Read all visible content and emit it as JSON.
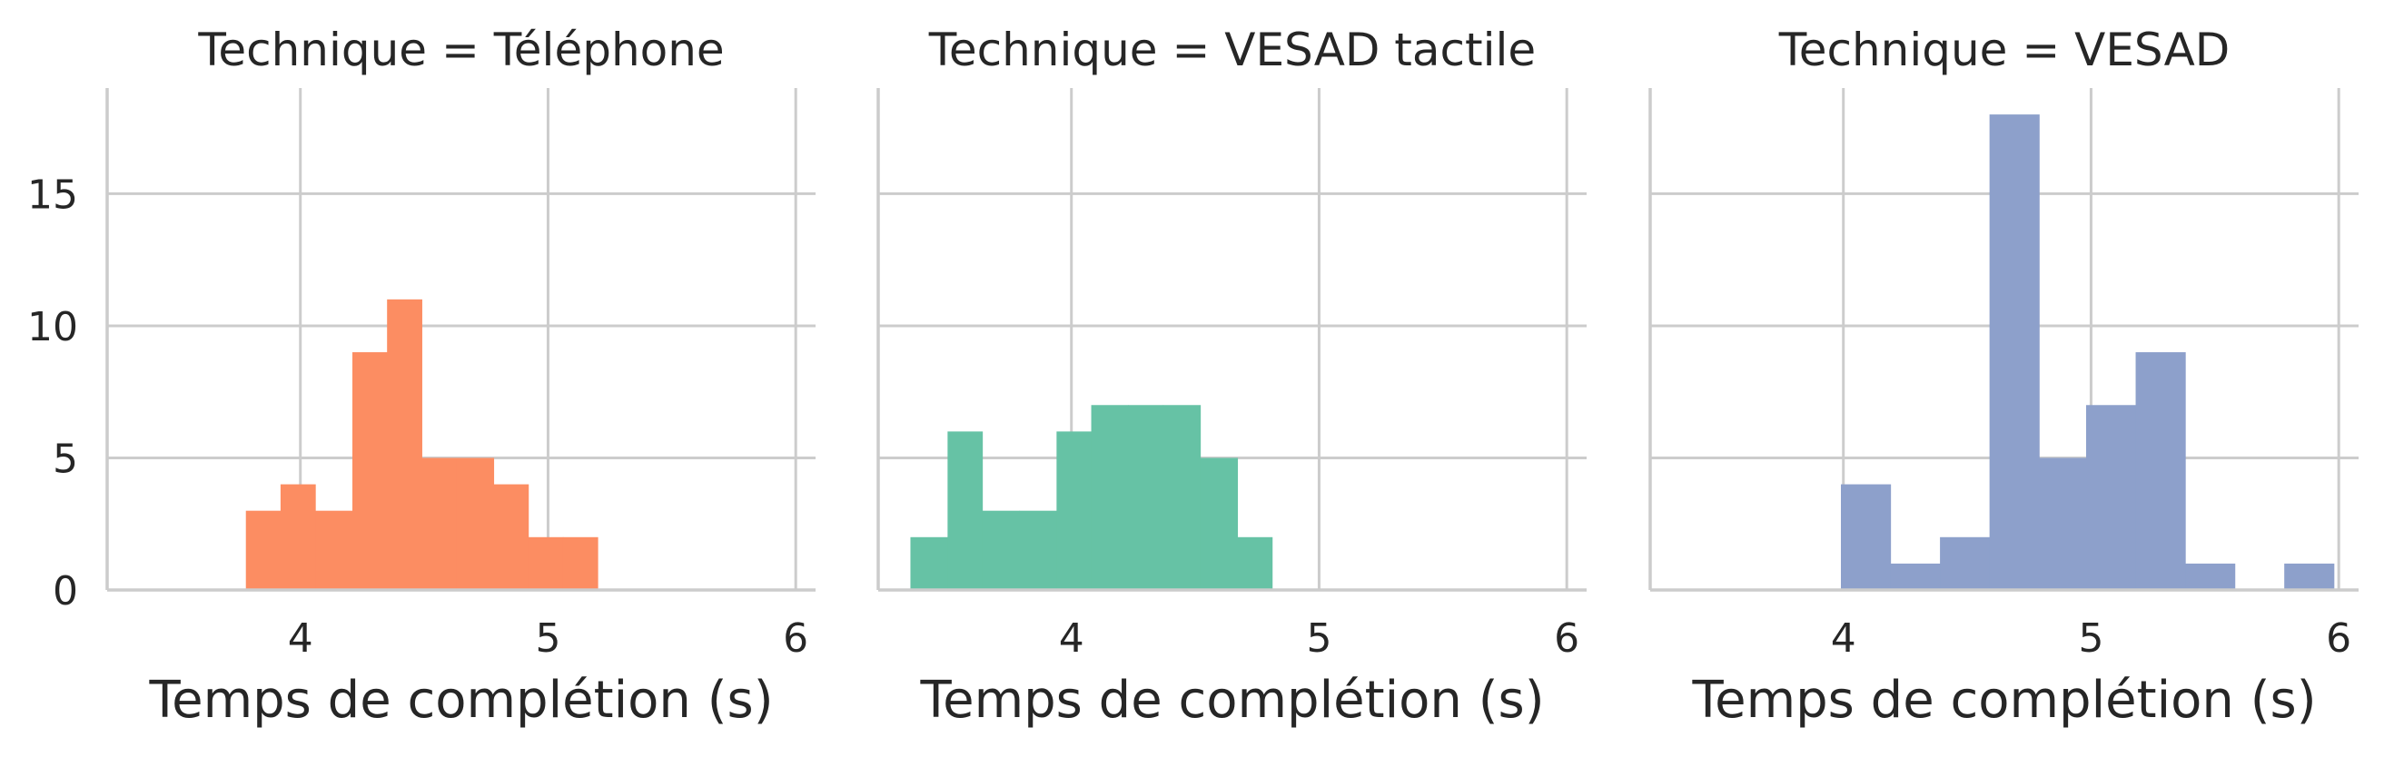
{
  "chart_data": [
    {
      "type": "bar",
      "title": "Technique = Téléphone",
      "xlabel": "Temps de complétion (s)",
      "ylabel": "",
      "color": "#fc8d62",
      "xlim": [
        3.22,
        6.08
      ],
      "ylim": [
        0,
        19
      ],
      "xticks": [
        4,
        5,
        6
      ],
      "yticks": [
        0,
        5,
        10,
        15
      ],
      "grid": true,
      "bins": [
        {
          "x0": 3.78,
          "x1": 3.92,
          "count": 3
        },
        {
          "x0": 3.92,
          "x1": 4.06,
          "count": 4
        },
        {
          "x0": 4.06,
          "x1": 4.21,
          "count": 3
        },
        {
          "x0": 4.21,
          "x1": 4.35,
          "count": 9
        },
        {
          "x0": 4.35,
          "x1": 4.49,
          "count": 11
        },
        {
          "x0": 4.49,
          "x1": 4.63,
          "count": 5
        },
        {
          "x0": 4.63,
          "x1": 4.78,
          "count": 5
        },
        {
          "x0": 4.78,
          "x1": 4.92,
          "count": 4
        },
        {
          "x0": 4.92,
          "x1": 5.06,
          "count": 2
        },
        {
          "x0": 5.06,
          "x1": 5.2,
          "count": 2
        }
      ]
    },
    {
      "type": "bar",
      "title": "Technique = VESAD tactile",
      "xlabel": "Temps de complétion (s)",
      "ylabel": "",
      "color": "#66c2a5",
      "xlim": [
        3.22,
        6.08
      ],
      "ylim": [
        0,
        19
      ],
      "xticks": [
        4,
        5,
        6
      ],
      "yticks": [
        0,
        5,
        10,
        15
      ],
      "grid": true,
      "bins": [
        {
          "x0": 3.35,
          "x1": 3.5,
          "count": 2
        },
        {
          "x0": 3.5,
          "x1": 3.64,
          "count": 6
        },
        {
          "x0": 3.64,
          "x1": 3.79,
          "count": 3
        },
        {
          "x0": 3.79,
          "x1": 3.94,
          "count": 3
        },
        {
          "x0": 3.94,
          "x1": 4.08,
          "count": 6
        },
        {
          "x0": 4.08,
          "x1": 4.23,
          "count": 7
        },
        {
          "x0": 4.23,
          "x1": 4.37,
          "count": 7
        },
        {
          "x0": 4.37,
          "x1": 4.52,
          "count": 7
        },
        {
          "x0": 4.52,
          "x1": 4.67,
          "count": 5
        },
        {
          "x0": 4.67,
          "x1": 4.81,
          "count": 2
        }
      ]
    },
    {
      "type": "bar",
      "title": "Technique = VESAD",
      "xlabel": "Temps de complétion (s)",
      "ylabel": "",
      "color": "#8da0cb",
      "xlim": [
        3.22,
        6.08
      ],
      "ylim": [
        0,
        19
      ],
      "xticks": [
        4,
        5,
        6
      ],
      "yticks": [
        0,
        5,
        10,
        15
      ],
      "grid": true,
      "bins": [
        {
          "x0": 3.99,
          "x1": 4.19,
          "count": 4
        },
        {
          "x0": 4.19,
          "x1": 4.39,
          "count": 1
        },
        {
          "x0": 4.39,
          "x1": 4.59,
          "count": 2
        },
        {
          "x0": 4.59,
          "x1": 4.79,
          "count": 18
        },
        {
          "x0": 4.79,
          "x1": 4.98,
          "count": 5
        },
        {
          "x0": 4.98,
          "x1": 5.18,
          "count": 7
        },
        {
          "x0": 5.18,
          "x1": 5.38,
          "count": 9
        },
        {
          "x0": 5.38,
          "x1": 5.58,
          "count": 1
        },
        {
          "x0": 5.58,
          "x1": 5.78,
          "count": 0
        },
        {
          "x0": 5.78,
          "x1": 5.98,
          "count": 1
        }
      ]
    }
  ]
}
